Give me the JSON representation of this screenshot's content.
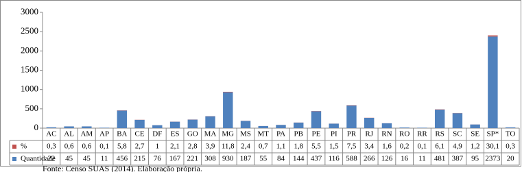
{
  "chart_data": {
    "type": "bar",
    "stacked": true,
    "categories": [
      "AC",
      "AL",
      "AM",
      "AP",
      "BA",
      "CE",
      "DF",
      "ES",
      "GO",
      "MA",
      "MG",
      "MS",
      "MT",
      "PA",
      "PB",
      "PE",
      "PI",
      "PR",
      "RJ",
      "RN",
      "RO",
      "RR",
      "RS",
      "SC",
      "SE",
      "SP*",
      "TO"
    ],
    "series": [
      {
        "name": "%",
        "color": "#c0504d",
        "values": [
          0.3,
          0.6,
          0.6,
          0.1,
          5.8,
          2.7,
          1,
          2.1,
          2.8,
          3.9,
          11.8,
          2.4,
          0.7,
          1.1,
          1.8,
          5.5,
          1.5,
          7.5,
          3.4,
          1.6,
          0.2,
          0.1,
          6.1,
          4.9,
          1.2,
          30.1,
          0.3
        ],
        "value_labels": [
          "0,3",
          "0,6",
          "0,6",
          "0,1",
          "5,8",
          "2,7",
          "1",
          "2,1",
          "2,8",
          "3,9",
          "11,8",
          "2,4",
          "0,7",
          "1,1",
          "1,8",
          "5,5",
          "1,5",
          "7,5",
          "3,4",
          "1,6",
          "0,2",
          "0,1",
          "6,1",
          "4,9",
          "1,2",
          "30,1",
          "0,3"
        ]
      },
      {
        "name": "Quantidade",
        "color": "#4f81bd",
        "values": [
          22,
          45,
          45,
          11,
          456,
          215,
          76,
          167,
          221,
          308,
          930,
          187,
          55,
          84,
          144,
          437,
          116,
          588,
          266,
          126,
          16,
          11,
          481,
          387,
          95,
          2373,
          20
        ]
      }
    ],
    "ylim": [
      0,
      3000
    ],
    "yticks": [
      0,
      500,
      1000,
      1500,
      2000,
      2500,
      3000
    ],
    "grid": false,
    "source": "Fonte: Censo SUAS (2014). Elaboração própria."
  }
}
